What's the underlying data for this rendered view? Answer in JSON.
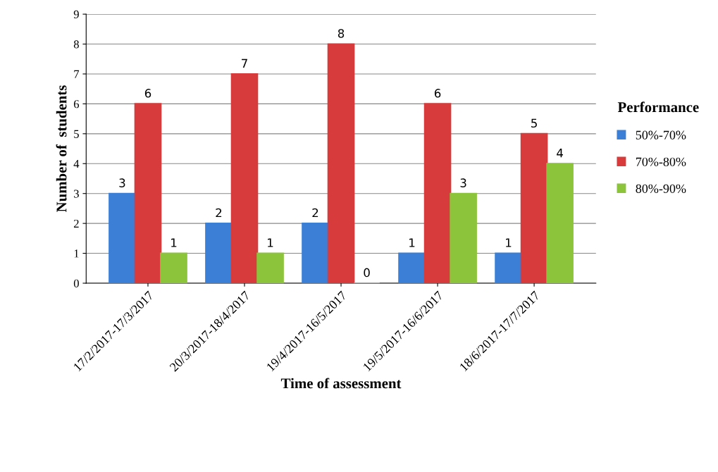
{
  "chart_data": {
    "type": "bar",
    "xlabel": "Time of assessment",
    "ylabel": "Number of  students",
    "legend_title": "Performance",
    "categories": [
      "17/2/2017-17/3/2017",
      "20/3/2017-18/4/2017",
      "19/4/2017-16/5/2017",
      "19/5/2017-16/6/2017",
      "18/6/2017-17/7/2017"
    ],
    "series": [
      {
        "name": "50%-70%",
        "color": "#3b7fd6",
        "values": [
          3,
          2,
          2,
          1,
          1
        ]
      },
      {
        "name": "70%-80%",
        "color": "#d83b3b",
        "values": [
          6,
          7,
          8,
          6,
          5
        ]
      },
      {
        "name": "80%-90%",
        "color": "#8cc43c",
        "values": [
          1,
          1,
          0,
          3,
          4
        ]
      }
    ],
    "ylim": [
      0,
      9
    ],
    "yticks": [
      0,
      1,
      2,
      3,
      4,
      5,
      6,
      7,
      8,
      9
    ],
    "grid": "y",
    "legend": "right",
    "data_labels": true
  }
}
